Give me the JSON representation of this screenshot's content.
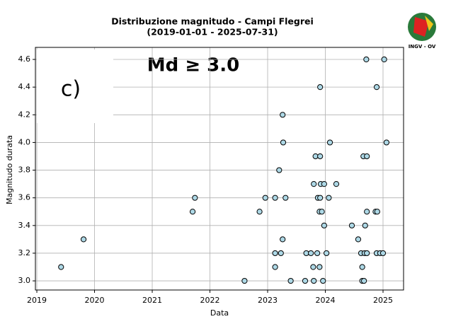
{
  "chart_data": {
    "type": "scatter",
    "title": [
      "Distribuzione magnitudo - Campi Flegrei",
      "(2019-01-01 - 2025-07-31)"
    ],
    "xlabel": "Data",
    "ylabel": "Magnitudo durata",
    "annotations": [
      "Md ≥ 3.0",
      "c)"
    ],
    "logo": "INGV - OV",
    "color": "#add8e6",
    "edgecolor": "#000000",
    "grid": true,
    "x": [
      2019.42,
      2019.81,
      2021.7,
      2021.74,
      2022.6,
      2022.86,
      2022.96,
      2023.13,
      2023.13,
      2023.13,
      2023.2,
      2023.23,
      2023.26,
      2023.26,
      2023.27,
      2023.31,
      2023.4,
      2023.65,
      2023.67,
      2023.75,
      2023.79,
      2023.8,
      2023.8,
      2023.83,
      2023.86,
      2023.87,
      2023.9,
      2023.9,
      2023.91,
      2023.91,
      2023.91,
      2023.92,
      2023.94,
      2023.96,
      2023.98,
      2023.98,
      2024.02,
      2024.06,
      2024.08,
      2024.19,
      2024.46,
      2024.57,
      2024.62,
      2024.64,
      2024.64,
      2024.66,
      2024.67,
      2024.68,
      2024.69,
      2024.71,
      2024.72,
      2024.72,
      2024.72,
      2024.87,
      2024.89,
      2024.89,
      2024.9,
      2024.95,
      2025.0,
      2025.02,
      2025.06
    ],
    "values": [
      3.1,
      3.3,
      3.5,
      3.6,
      3.0,
      3.5,
      3.6,
      3.1,
      3.2,
      3.6,
      3.8,
      3.2,
      3.3,
      4.2,
      4.0,
      3.6,
      3.0,
      3.0,
      3.2,
      3.2,
      3.1,
      3.0,
      3.7,
      3.9,
      3.2,
      3.6,
      3.5,
      3.1,
      4.4,
      3.9,
      3.6,
      3.7,
      3.5,
      3.0,
      3.4,
      3.7,
      3.2,
      3.6,
      4.0,
      3.7,
      3.4,
      3.3,
      3.2,
      3.0,
      3.1,
      3.9,
      3.0,
      3.2,
      3.4,
      4.6,
      3.5,
      3.9,
      3.2,
      3.5,
      4.4,
      3.2,
      3.5,
      3.2,
      3.2,
      4.6,
      4.0
    ],
    "xlim": [
      2018.975,
      2025.356
    ],
    "xticks": [
      2019,
      2020,
      2021,
      2022,
      2023,
      2024,
      2025
    ],
    "ylim": [
      2.934,
      4.687
    ],
    "yticks": [
      {
        "value": 3,
        "label": "3.0"
      },
      3.2,
      3.4,
      3.6,
      3.8,
      {
        "value": 4,
        "label": "4.0"
      },
      4.2,
      4.4,
      4.6
    ]
  }
}
